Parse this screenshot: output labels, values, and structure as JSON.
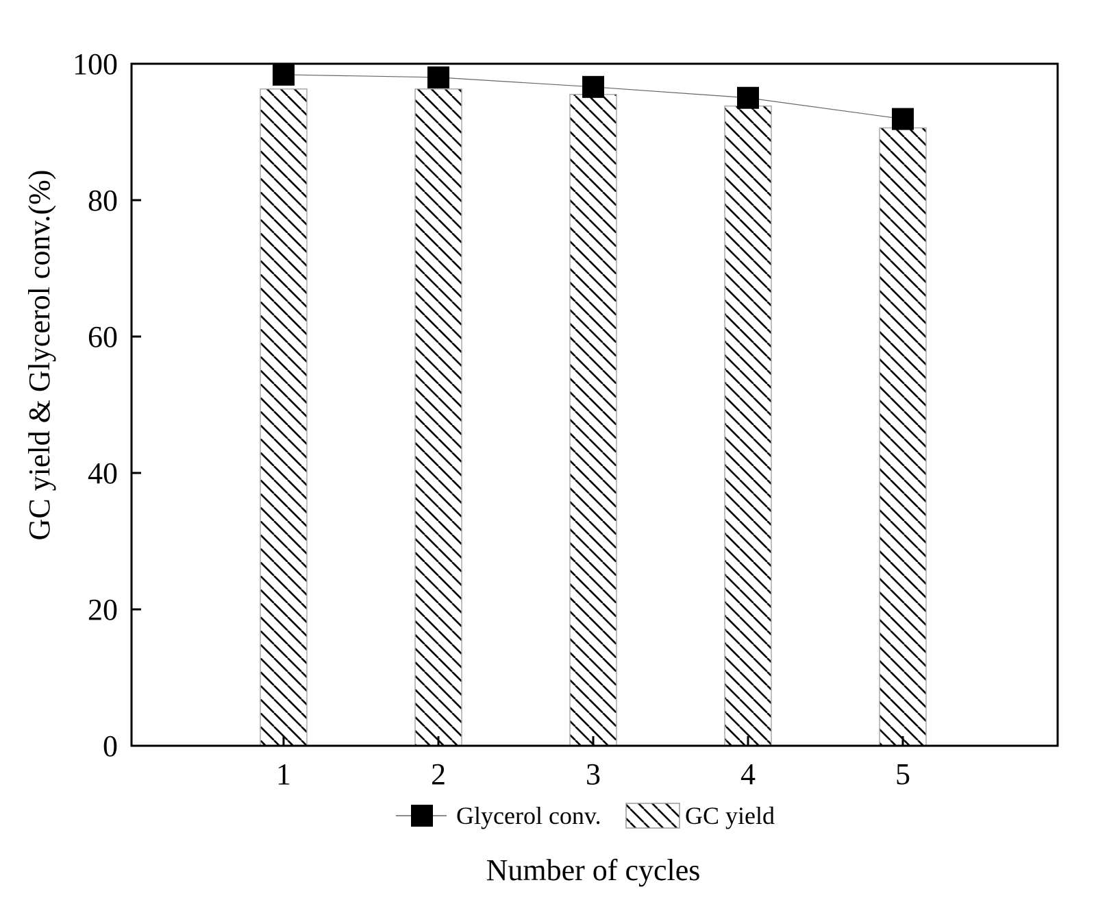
{
  "chart_data": {
    "type": "bar",
    "categories": [
      "1",
      "2",
      "3",
      "4",
      "5"
    ],
    "series": [
      {
        "name": "GC yield",
        "kind": "bar",
        "pattern": "diagonal-hatch",
        "values": [
          96.3,
          96.3,
          95.5,
          93.8,
          90.6
        ]
      },
      {
        "name": "Glycerol conv.",
        "kind": "line",
        "marker": "filled-square",
        "values": [
          98.4,
          98.0,
          96.6,
          95.0,
          91.9
        ]
      }
    ],
    "title": "",
    "xlabel": "Number of cycles",
    "ylabel": "GC yield & Glycerol conv.(%)",
    "ylim": [
      0,
      100
    ],
    "yticks": [
      "0",
      "20",
      "40",
      "60",
      "80",
      "100"
    ],
    "grid": false,
    "legend_position": "bottom-center",
    "colors": {
      "axis": "#000000",
      "marker": "#000000",
      "line": "#666666",
      "bar_fill": "#ffffff",
      "hatch": "#000000"
    }
  }
}
